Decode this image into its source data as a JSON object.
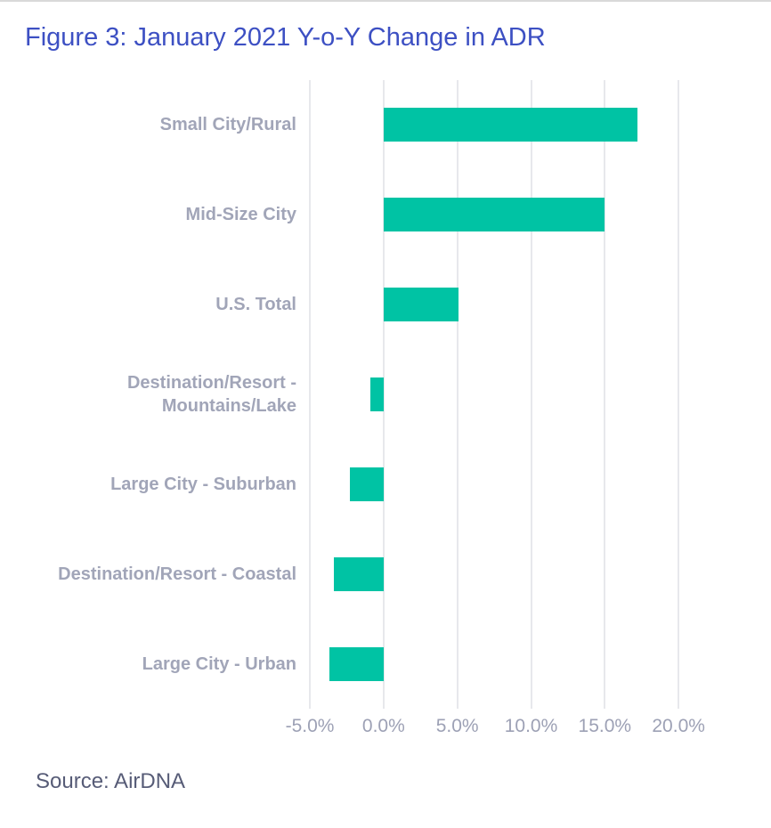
{
  "title": "Figure 3: January 2021 Y-o-Y Change in ADR",
  "source": "Source: AirDNA",
  "colors": {
    "title": "#3d50c3",
    "bar": "#00c3a4",
    "category_label": "#a1a5b8",
    "tick_label": "#9da1b5",
    "gridline": "#e7e8ec",
    "source_text": "#575c77"
  },
  "chart_data": {
    "type": "bar",
    "orientation": "horizontal",
    "title": "Figure 3: January 2021 Y-o-Y Change in ADR",
    "categories": [
      "Small City/Rural",
      "Mid-Size City",
      "U.S. Total",
      "Destination/Resort - Mountains/Lake",
      "Large City - Suburban",
      "Destination/Resort - Coastal",
      "Large City - Urban"
    ],
    "values": [
      17.2,
      15.0,
      5.1,
      -0.9,
      -2.3,
      -3.4,
      -3.7
    ],
    "value_unit": "%",
    "x_tick_labels": [
      "-5.0%",
      "0.0%",
      "5.0%",
      "10.0%",
      "15.0%",
      "20.0%"
    ],
    "x_tick_values": [
      -5,
      0,
      5,
      10,
      15,
      20
    ],
    "xlim": [
      -5,
      25
    ],
    "grid": true,
    "legend": false,
    "annotation": "Source: AirDNA"
  }
}
